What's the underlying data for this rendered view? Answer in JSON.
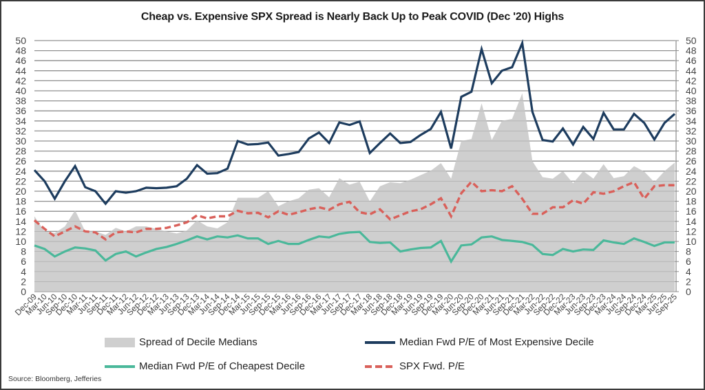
{
  "chart_data": {
    "type": "line",
    "title": "Cheap vs. Expensive SPX Spread is Nearly Back Up to Peak COVID (Dec '20) Highs",
    "xlabel": "",
    "ylabel": "",
    "ylim": [
      0,
      50
    ],
    "yticks": [
      0,
      2,
      4,
      6,
      8,
      10,
      12,
      14,
      16,
      18,
      20,
      22,
      24,
      26,
      28,
      30,
      32,
      34,
      36,
      38,
      40,
      42,
      44,
      46,
      48,
      50
    ],
    "secondary_ylim": [
      0,
      50
    ],
    "grid": true,
    "legend_position": "bottom",
    "categories": [
      "Dec-09",
      "Mar-10",
      "Jun-10",
      "Sep-10",
      "Dec-10",
      "Mar-11",
      "Jun-11",
      "Sep-11",
      "Dec-11",
      "Mar-12",
      "Jun-12",
      "Sep-12",
      "Dec-12",
      "Mar-13",
      "Jun-13",
      "Sep-13",
      "Dec-13",
      "Mar-14",
      "Jun-14",
      "Sep-14",
      "Dec-14",
      "Mar-15",
      "Jun-15",
      "Sep-15",
      "Dec-15",
      "Mar-16",
      "Jun-16",
      "Sep-16",
      "Dec-16",
      "Mar-17",
      "Jun-17",
      "Sep-17",
      "Dec-17",
      "Mar-18",
      "Jun-18",
      "Sep-18",
      "Dec-18",
      "Mar-19",
      "Jun-19",
      "Sep-19",
      "Dec-19",
      "Mar-20",
      "Jun-20",
      "Sep-20",
      "Dec-20",
      "Mar-21",
      "Jun-21",
      "Sep-21",
      "Dec-21",
      "Mar-22",
      "Jun-22",
      "Sep-22",
      "Dec-22",
      "Mar-23",
      "Jun-23",
      "Sep-23",
      "Dec-23",
      "Mar-24",
      "Jun-24",
      "Sep-24",
      "Dec-24",
      "Mar-25",
      "Jun-25",
      "Sep-25"
    ],
    "series": [
      {
        "name": "Spread of Decile Medians",
        "type": "area",
        "color": "#cfcfcf",
        "values": [
          15,
          12,
          11.7,
          13,
          16.2,
          12,
          12,
          11.3,
          12.7,
          12,
          13,
          13,
          12.5,
          12,
          11.6,
          12.2,
          14.2,
          13,
          12.6,
          13.8,
          18.7,
          18.7,
          18.7,
          20,
          17,
          18,
          18.6,
          20.3,
          20.6,
          18.8,
          22.6,
          21.3,
          21.9,
          18,
          21,
          21.8,
          21.6,
          22.3,
          23.2,
          24.1,
          25.6,
          22.5,
          30,
          30.4,
          37.5,
          30.2,
          34,
          34.4,
          39.5,
          26,
          22.8,
          22.5,
          24,
          21.6,
          24,
          22.5,
          25.4,
          22.6,
          23,
          25,
          23.9,
          21.8,
          24,
          25.7
        ]
      },
      {
        "name": "Median Fwd P/E of Most Expensive Decile",
        "type": "line",
        "color": "#1d3c5e",
        "values": [
          24.2,
          22,
          18.5,
          22,
          25,
          20.8,
          20,
          17.5,
          20,
          19.7,
          20,
          20.7,
          20.6,
          20.7,
          21,
          22.5,
          25.2,
          23.5,
          23.6,
          24.5,
          30,
          29.3,
          29.4,
          29.7,
          27.1,
          27.4,
          27.8,
          30.5,
          31.7,
          29.6,
          33.7,
          33.2,
          33.9,
          27.6,
          29.6,
          31.5,
          29.6,
          29.8,
          31.2,
          32.4,
          35.8,
          28.5,
          38.8,
          39.8,
          48.3,
          41.5,
          44,
          44.7,
          49.5,
          35.8,
          30.2,
          29.9,
          32.5,
          29.3,
          32.8,
          30.4,
          35.6,
          32.3,
          32.3,
          35.4,
          33.6,
          30.3,
          33.6,
          35.4
        ]
      },
      {
        "name": "Median Fwd P/E of Cheapest Decile",
        "type": "line",
        "color": "#4ab89a",
        "values": [
          9.2,
          8.5,
          7,
          8,
          8.8,
          8.6,
          8.2,
          6.2,
          7.5,
          8,
          7,
          7.8,
          8.5,
          8.9,
          9.5,
          10.2,
          11,
          10.4,
          11,
          10.8,
          11.2,
          10.6,
          10.6,
          9.5,
          10.1,
          9.5,
          9.5,
          10.3,
          11,
          10.8,
          11.5,
          11.8,
          11.9,
          9.9,
          9.7,
          9.8,
          8,
          8.4,
          8.7,
          8.8,
          10.1,
          6,
          9.2,
          9.4,
          10.8,
          11,
          10.3,
          10.1,
          9.9,
          9.3,
          7.5,
          7.3,
          8.5,
          8,
          8.4,
          8.3,
          10.2,
          9.8,
          9.5,
          10.6,
          9.9,
          9.1,
          9.8,
          9.8
        ]
      },
      {
        "name": "SPX Fwd. P/E",
        "type": "dashed-line",
        "color": "#d9605a",
        "values": [
          14.2,
          12.5,
          11,
          12,
          13,
          12,
          11.8,
          10.4,
          11.8,
          12,
          11.8,
          12.5,
          12.5,
          12.7,
          13.2,
          13.8,
          15.2,
          14.6,
          15,
          15,
          16.1,
          15.6,
          15.7,
          14.8,
          16,
          15.3,
          15.8,
          16.4,
          16.8,
          16.3,
          17.4,
          17.9,
          15.8,
          15.4,
          16.4,
          14.4,
          15.2,
          16,
          16.4,
          17.4,
          18.6,
          15,
          19.6,
          21.9,
          20,
          20.2,
          20,
          21,
          18.5,
          15.5,
          15.5,
          16.8,
          16.8,
          18.2,
          17.5,
          19.8,
          19.5,
          20,
          21,
          21.8,
          18.5,
          21,
          21.2,
          21.2
        ]
      }
    ],
    "legend": [
      {
        "label": "Spread of Decile Medians",
        "kind": "area"
      },
      {
        "label": "Median Fwd P/E of Most Expensive Decile",
        "kind": "line"
      },
      {
        "label": "Median Fwd P/E of Cheapest Decile",
        "kind": "line"
      },
      {
        "label": "SPX Fwd. P/E",
        "kind": "dashed"
      }
    ],
    "source": "Source: Bloomberg, Jefferies"
  }
}
